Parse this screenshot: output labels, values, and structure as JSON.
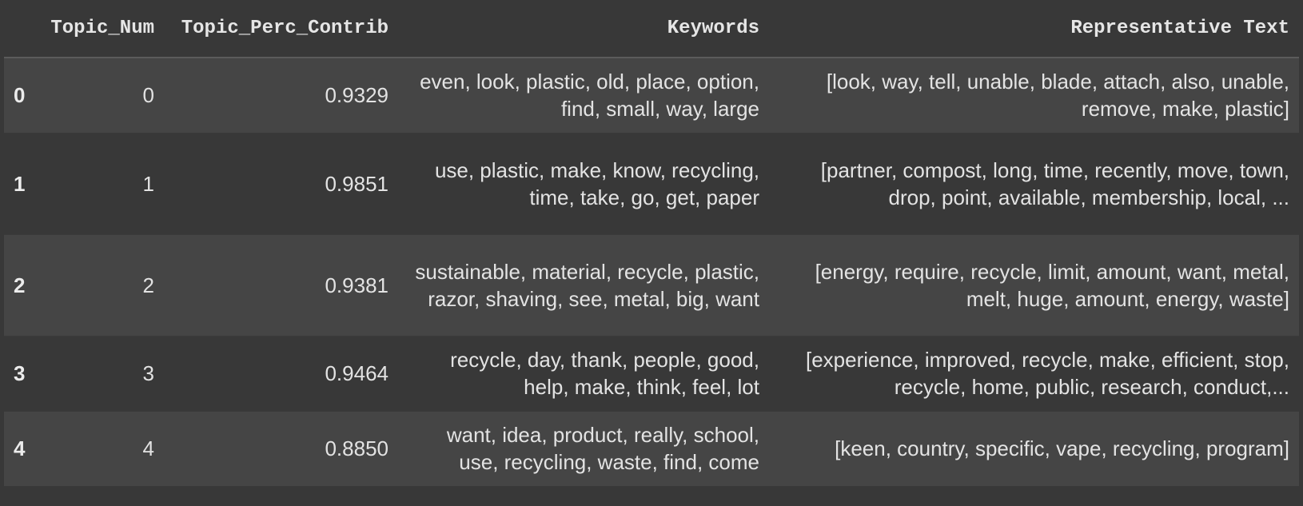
{
  "table": {
    "columns": [
      "",
      "Topic_Num",
      "Topic_Perc_Contrib",
      "Keywords",
      "Representative Text"
    ],
    "rows": [
      {
        "index": "0",
        "topic_num": "0",
        "perc": "0.9329",
        "keywords": "even, look, plastic, old, place, option, find, small, way, large",
        "text": "[look, way, tell, unable, blade, attach, also, unable, remove, make, plastic]"
      },
      {
        "index": "1",
        "topic_num": "1",
        "perc": "0.9851",
        "keywords": "use, plastic, make, know, recycling, time, take, go, get, paper",
        "text": "[partner, compost, long, time, recently, move, town, drop, point, available, membership, local, ..."
      },
      {
        "index": "2",
        "topic_num": "2",
        "perc": "0.9381",
        "keywords": "sustainable, material, recycle, plastic, razor, shaving, see, metal, big, want",
        "text": "[energy, require, recycle, limit, amount, want, metal, melt, huge, amount, energy, waste]"
      },
      {
        "index": "3",
        "topic_num": "3",
        "perc": "0.9464",
        "keywords": "recycle, day, thank, people, good, help, make, think, feel, lot",
        "text": "[experience, improved, recycle, make, efficient, stop, recycle, home, public, research, conduct,..."
      },
      {
        "index": "4",
        "topic_num": "4",
        "perc": "0.8850",
        "keywords": "want, idea, product, really, school, use, recycling, waste, find, come",
        "text": "[keen, country, specific, vape, recycling, program]"
      }
    ]
  }
}
